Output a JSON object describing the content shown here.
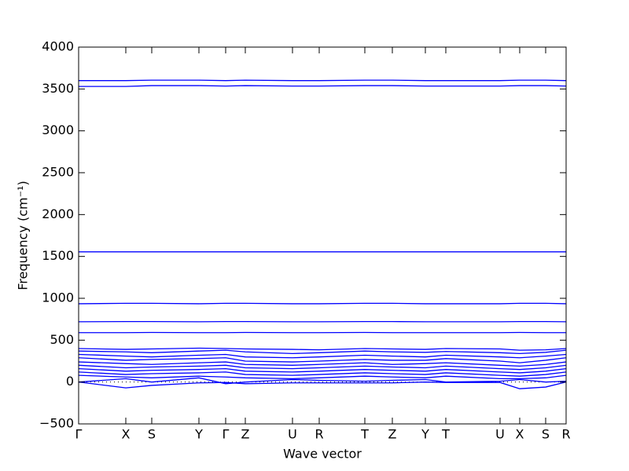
{
  "chart_data": {
    "type": "line",
    "xlabel": "Wave vector",
    "ylabel": "Frequency (cm⁻¹)",
    "xlim": [
      0,
      6.2
    ],
    "xticks": [
      {
        "value": 0,
        "label": "Γ"
      },
      {
        "value": 0.6,
        "label": "X"
      },
      {
        "value": 0.93,
        "label": "S"
      },
      {
        "value": 1.53,
        "label": "Y"
      },
      {
        "value": 1.87,
        "label": "Γ"
      },
      {
        "value": 2.12,
        "label": "Z"
      },
      {
        "value": 2.72,
        "label": "U"
      },
      {
        "value": 3.06,
        "label": "R"
      },
      {
        "value": 3.64,
        "label": "T"
      },
      {
        "value": 3.99,
        "label": "Z"
      },
      {
        "value": 4.41,
        "label": "Y"
      },
      {
        "value": 4.67,
        "label": "T"
      },
      {
        "value": 5.36,
        "label": "U"
      },
      {
        "value": 5.61,
        "label": "X"
      },
      {
        "value": 5.94,
        "label": "S"
      },
      {
        "value": 6.2,
        "label": "R"
      }
    ],
    "ylim": [
      -500,
      4000
    ],
    "yticks": [
      {
        "value": -500,
        "label": "−500"
      },
      0,
      500,
      1000,
      1500,
      2000,
      2500,
      3000,
      3500,
      4000
    ],
    "zero_line": true,
    "x": [
      0,
      0.6,
      0.93,
      1.53,
      1.87,
      2.12,
      2.72,
      3.06,
      3.64,
      3.99,
      4.41,
      4.67,
      5.36,
      5.61,
      5.94,
      6.2
    ],
    "series": [
      {
        "color": "#0000ff",
        "values": [
          3600,
          3600,
          3605,
          3605,
          3600,
          3605,
          3600,
          3600,
          3605,
          3605,
          3600,
          3600,
          3600,
          3605,
          3605,
          3600
        ]
      },
      {
        "color": "#0000ff",
        "values": [
          3530,
          3530,
          3540,
          3540,
          3535,
          3540,
          3535,
          3535,
          3540,
          3540,
          3535,
          3535,
          3535,
          3540,
          3540,
          3535
        ]
      },
      {
        "color": "#0000ff",
        "values": [
          1555,
          1555,
          1555,
          1555,
          1555,
          1555,
          1555,
          1555,
          1555,
          1555,
          1555,
          1555,
          1555,
          1555,
          1555,
          1555
        ]
      },
      {
        "color": "#0000ff",
        "values": [
          935,
          940,
          940,
          935,
          940,
          940,
          935,
          935,
          940,
          940,
          935,
          935,
          935,
          940,
          940,
          935
        ]
      },
      {
        "color": "#0000ff",
        "values": [
          720,
          722,
          722,
          720,
          722,
          722,
          720,
          720,
          722,
          722,
          720,
          720,
          720,
          722,
          722,
          720
        ]
      },
      {
        "color": "#0000ff",
        "values": [
          590,
          590,
          592,
          590,
          590,
          592,
          590,
          590,
          592,
          590,
          590,
          590,
          590,
          592,
          590,
          590
        ]
      },
      {
        "color": "#0000ff",
        "values": [
          400,
          390,
          395,
          405,
          400,
          395,
          390,
          385,
          400,
          395,
          390,
          400,
          395,
          380,
          385,
          400
        ]
      },
      {
        "color": "#0000ff",
        "values": [
          370,
          360,
          350,
          370,
          380,
          360,
          340,
          350,
          370,
          360,
          355,
          365,
          350,
          340,
          355,
          380
        ]
      },
      {
        "color": "#0000ff",
        "values": [
          330,
          310,
          300,
          320,
          330,
          300,
          290,
          300,
          320,
          310,
          300,
          320,
          300,
          290,
          310,
          330
        ]
      },
      {
        "color": "#0000ff",
        "values": [
          290,
          260,
          270,
          280,
          290,
          250,
          240,
          250,
          270,
          260,
          260,
          280,
          250,
          230,
          260,
          290
        ]
      },
      {
        "color": "#0000ff",
        "values": [
          240,
          220,
          210,
          230,
          240,
          210,
          200,
          210,
          230,
          210,
          220,
          230,
          200,
          190,
          210,
          240
        ]
      },
      {
        "color": "#0000ff",
        "values": [
          200,
          170,
          180,
          190,
          200,
          170,
          160,
          170,
          190,
          180,
          170,
          190,
          160,
          150,
          170,
          200
        ]
      },
      {
        "color": "#0000ff",
        "values": [
          160,
          130,
          140,
          150,
          160,
          130,
          120,
          130,
          150,
          140,
          130,
          150,
          120,
          110,
          130,
          160
        ]
      },
      {
        "color": "#0000ff",
        "values": [
          120,
          90,
          100,
          110,
          120,
          90,
          80,
          90,
          110,
          100,
          90,
          110,
          80,
          70,
          90,
          120
        ]
      },
      {
        "color": "#0000ff",
        "values": [
          80,
          60,
          50,
          70,
          60,
          50,
          40,
          50,
          70,
          60,
          50,
          70,
          40,
          40,
          50,
          80
        ]
      },
      {
        "color": "#0000ff",
        "values": [
          0,
          40,
          0,
          50,
          -20,
          0,
          30,
          20,
          10,
          20,
          30,
          0,
          10,
          30,
          0,
          10
        ]
      },
      {
        "color": "#0000ff",
        "values": [
          0,
          -70,
          -40,
          -10,
          -5,
          -20,
          -10,
          -10,
          -10,
          -10,
          0,
          -5,
          -5,
          -80,
          -60,
          0
        ]
      }
    ]
  }
}
